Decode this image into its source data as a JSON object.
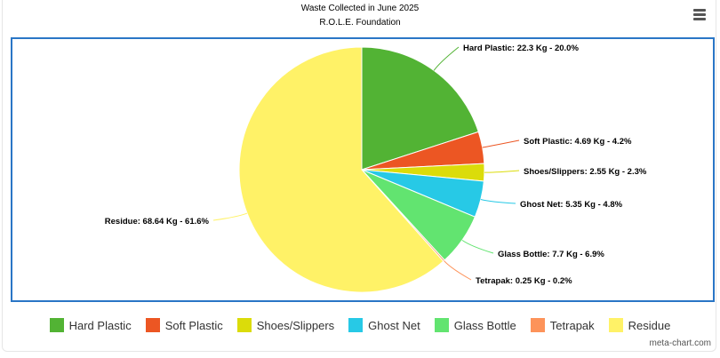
{
  "chart_data": {
    "type": "pie",
    "title": "Waste Collected in June 2025",
    "subtitle": "R.O.L.E. Foundation",
    "slices": [
      {
        "name": "Hard Plastic",
        "value": 22.3,
        "percent": 20.0,
        "color": "#52b334",
        "label": "Hard Plastic: 22.3 Kg - 20.0%"
      },
      {
        "name": "Soft Plastic",
        "value": 4.69,
        "percent": 4.2,
        "color": "#ec5623",
        "label": "Soft Plastic: 4.69 Kg - 4.2%"
      },
      {
        "name": "Shoes/Slippers",
        "value": 2.55,
        "percent": 2.3,
        "color": "#dbdc0a",
        "label": "Shoes/Slippers: 2.55 Kg - 2.3%"
      },
      {
        "name": "Ghost Net",
        "value": 5.35,
        "percent": 4.8,
        "color": "#27c9e6",
        "label": "Ghost Net: 5.35 Kg - 4.8%"
      },
      {
        "name": "Glass Bottle",
        "value": 7.7,
        "percent": 6.9,
        "color": "#62e470",
        "label": "Glass Bottle: 7.7 Kg - 6.9%"
      },
      {
        "name": "Tetrapak",
        "value": 0.25,
        "percent": 0.2,
        "color": "#fd935a",
        "label": "Tetrapak: 0.25 Kg - 0.2%"
      },
      {
        "name": "Residue",
        "value": 68.64,
        "percent": 61.6,
        "color": "#fff267",
        "label": "Residue: 68.64 Kg - 61.6%"
      }
    ],
    "legend_position": "bottom"
  },
  "credit": "meta-chart.com",
  "menu_icon": "hamburger-icon"
}
